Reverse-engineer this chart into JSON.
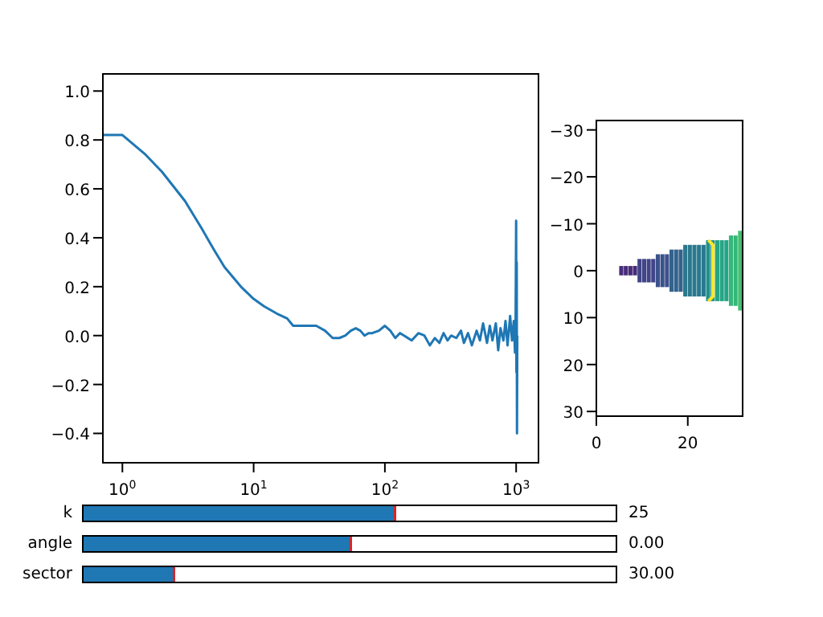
{
  "chart_data": [
    {
      "type": "line",
      "log": "x",
      "marker": "none",
      "line_style": "solid",
      "xlim": [
        0.71,
        1480
      ],
      "ylim": [
        -0.52,
        1.07
      ],
      "xticks": [
        {
          "value": 1,
          "label": "10$^{0}$"
        },
        {
          "value": 10,
          "label": "10$^{1}$"
        },
        {
          "value": 100,
          "label": "10$^{2}$"
        },
        {
          "value": 1000,
          "label": "10$^{3}$"
        }
      ],
      "yticks": [
        {
          "value": -0.4,
          "label": "−0.4"
        },
        {
          "value": -0.2,
          "label": "−0.2"
        },
        {
          "value": 0,
          "label": "0.0"
        },
        0.2,
        0.4,
        0.6,
        0.8,
        {
          "value": 1,
          "label": "1.0"
        }
      ],
      "x": [
        0.72,
        1,
        1.5,
        2,
        3,
        4,
        5,
        6,
        8,
        10,
        12,
        15,
        18,
        20,
        25,
        30,
        35,
        40,
        45,
        50,
        55,
        60,
        65,
        70,
        75,
        80,
        90,
        100,
        110,
        120,
        130,
        140,
        160,
        180,
        200,
        220,
        240,
        260,
        280,
        300,
        320,
        350,
        380,
        400,
        430,
        460,
        500,
        530,
        560,
        600,
        630,
        660,
        700,
        730,
        760,
        800,
        830,
        860,
        900,
        930,
        960,
        980,
        990,
        1000,
        1005,
        1010,
        1015,
        1020
      ],
      "series": [
        {
          "color": "#1f77b4",
          "values": [
            0.82,
            0.82,
            0.74,
            0.67,
            0.55,
            0.44,
            0.35,
            0.28,
            0.2,
            0.15,
            0.12,
            0.09,
            0.07,
            0.04,
            0.04,
            0.04,
            0.02,
            -0.01,
            -0.01,
            0.0,
            0.02,
            0.03,
            0.02,
            0.0,
            0.01,
            0.01,
            0.02,
            0.04,
            0.02,
            -0.01,
            0.01,
            0.0,
            -0.02,
            0.01,
            0.0,
            -0.04,
            -0.01,
            -0.03,
            0.01,
            -0.02,
            0.0,
            -0.01,
            0.02,
            -0.03,
            0.01,
            -0.04,
            0.02,
            -0.02,
            0.05,
            -0.03,
            0.04,
            -0.02,
            0.05,
            -0.06,
            0.03,
            -0.02,
            0.06,
            -0.04,
            0.08,
            -0.02,
            0.06,
            -0.07,
            0.02,
            0.47,
            -0.15,
            0.3,
            -0.4,
            0.0
          ]
        }
      ]
    },
    {
      "type": "bar",
      "xlim": [
        0,
        32
      ],
      "ylim": [
        31,
        -32
      ],
      "xticks": [
        0,
        20
      ],
      "yticks": [
        {
          "value": -30,
          "label": "−30"
        },
        {
          "value": -20,
          "label": "−20"
        },
        {
          "value": -10,
          "label": "−10"
        },
        0,
        10,
        20,
        30
      ],
      "x": [
        5.5,
        6.5,
        7.5,
        8.5,
        9.5,
        10.5,
        11.5,
        12.5,
        13.5,
        14.5,
        15.5,
        16.5,
        17.5,
        18.5,
        19.5,
        20.5,
        21.5,
        22.5,
        23.5,
        24.5,
        25.5,
        26.5,
        27.5,
        28.5,
        29.5,
        30.5,
        31.5
      ],
      "base": [
        -1,
        -1,
        -1,
        -1,
        -2.5,
        -2.5,
        -2.5,
        -2.5,
        -3.5,
        -3.5,
        -3.5,
        -4.5,
        -4.5,
        -4.5,
        -5.5,
        -5.5,
        -5.5,
        -5.5,
        -5.5,
        -6.5,
        -6.5,
        -6.5,
        -6.5,
        -6.5,
        -7.5,
        -7.5,
        -8.5
      ],
      "values": [
        2,
        2,
        2,
        2,
        5,
        5,
        5,
        5,
        7,
        7,
        7,
        9,
        9,
        9,
        11,
        11,
        11,
        11,
        11,
        13,
        13,
        13,
        13,
        13,
        15,
        15,
        17
      ],
      "colors": [
        "#472c7a",
        "#472c7a",
        "#472c7a",
        "#472c7a",
        "#414487",
        "#414487",
        "#414487",
        "#414487",
        "#3b528b",
        "#3b528b",
        "#3b528b",
        "#33638d",
        "#33638d",
        "#33638d",
        "#2a788e",
        "#2a788e",
        "#2a788e",
        "#2a788e",
        "#2a788e",
        "#21918c",
        "#21918c",
        "#25a584",
        "#25a584",
        "#25a584",
        "#35b779",
        "#35b779",
        "#44bf70"
      ]
    },
    {
      "type": "other",
      "categories": [
        "k",
        "angle",
        "sector"
      ],
      "annotations": [
        "25",
        "0.00",
        "30.00"
      ]
    }
  ]
}
